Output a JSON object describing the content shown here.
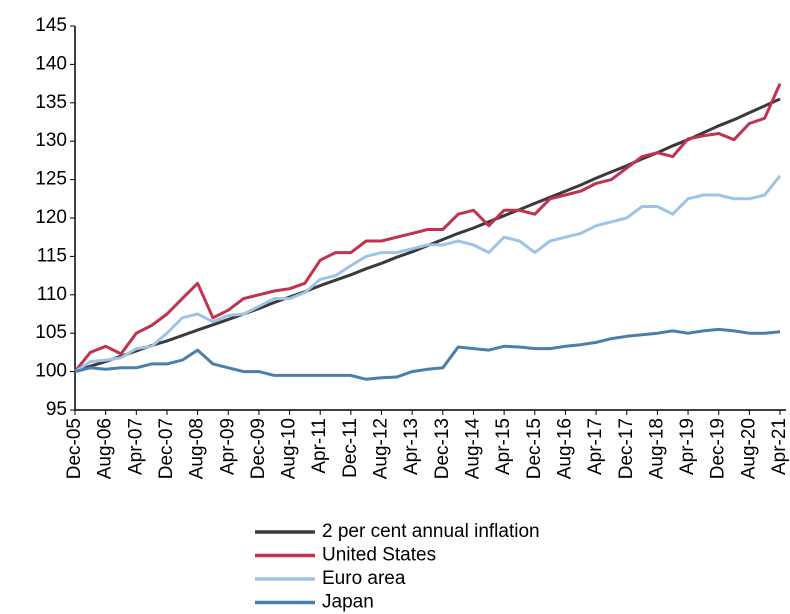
{
  "chart_data": {
    "type": "line",
    "categories": [
      "Dec-05",
      null,
      "Aug-06",
      null,
      "Apr-07",
      null,
      "Dec-07",
      null,
      "Aug-08",
      null,
      "Apr-09",
      null,
      "Dec-09",
      null,
      "Aug-10",
      null,
      "Apr-11",
      null,
      "Dec-11",
      null,
      "Aug-12",
      null,
      "Apr-13",
      null,
      "Dec-13",
      null,
      "Aug-14",
      null,
      "Apr-15",
      null,
      "Dec-15",
      null,
      "Aug-16",
      null,
      "Apr-17",
      null,
      "Dec-17",
      null,
      "Aug-18",
      null,
      "Apr-19",
      null,
      "Dec-19",
      null,
      "Aug-20",
      null,
      "Apr-21"
    ],
    "series": [
      {
        "name": "2 per cent annual inflation",
        "color": "#3a3a3a",
        "values": [
          100,
          100.7,
          101.3,
          102,
          102.7,
          103.4,
          104,
          104.7,
          105.4,
          106.1,
          106.8,
          107.5,
          108.2,
          109,
          109.7,
          110.4,
          111.2,
          111.9,
          112.6,
          113.4,
          114.1,
          114.9,
          115.6,
          116.4,
          117.2,
          118,
          118.7,
          119.5,
          120.3,
          121.1,
          121.9,
          122.7,
          123.5,
          124.3,
          125.2,
          126,
          126.8,
          127.7,
          128.5,
          129.4,
          130.2,
          131.1,
          132,
          132.8,
          133.7,
          134.6,
          135.5
        ]
      },
      {
        "name": "United States",
        "color": "#c0324f",
        "values": [
          100,
          102.5,
          103.3,
          102.3,
          105,
          106,
          107.5,
          109.5,
          111.5,
          107,
          108,
          109.5,
          110,
          110.5,
          110.8,
          111.5,
          114.5,
          115.5,
          115.5,
          117,
          117,
          117.5,
          118,
          118.5,
          118.5,
          120.5,
          121,
          119,
          121,
          121,
          120.5,
          122.5,
          123,
          123.5,
          124.5,
          125,
          126.5,
          128,
          128.5,
          128,
          130.3,
          130.7,
          131,
          130.2,
          132.3,
          133,
          137.5
        ]
      },
      {
        "name": "Euro area",
        "color": "#9dc3e6",
        "values": [
          100,
          101.3,
          101.5,
          101.8,
          103,
          103.3,
          105,
          107,
          107.5,
          106.5,
          107.3,
          107.5,
          108.5,
          109.5,
          109.5,
          110.3,
          112,
          112.5,
          113.8,
          115,
          115.5,
          115.5,
          116,
          116.5,
          116.5,
          117,
          116.5,
          115.5,
          117.5,
          117,
          115.5,
          117,
          117.5,
          118,
          119,
          119.5,
          120,
          121.5,
          121.5,
          120.5,
          122.5,
          123,
          123,
          122.5,
          122.5,
          123,
          125.5
        ]
      },
      {
        "name": "Japan",
        "color": "#4a7eab",
        "values": [
          100,
          100.5,
          100.3,
          100.5,
          100.5,
          101,
          101,
          101.5,
          102.8,
          101,
          100.5,
          100,
          100,
          99.5,
          99.5,
          99.5,
          99.5,
          99.5,
          99.5,
          99,
          99.2,
          99.3,
          100,
          100.3,
          100.5,
          103.2,
          103,
          102.8,
          103.3,
          103.2,
          103,
          103,
          103.3,
          103.5,
          103.8,
          104.3,
          104.6,
          104.8,
          105,
          105.3,
          105,
          105.3,
          105.5,
          105.3,
          105,
          105,
          105.2
        ]
      }
    ],
    "ylim": [
      95,
      145
    ],
    "yticks": [
      95,
      100,
      105,
      110,
      115,
      120,
      125,
      130,
      135,
      140,
      145
    ],
    "grid": false,
    "legend": "bottom"
  }
}
